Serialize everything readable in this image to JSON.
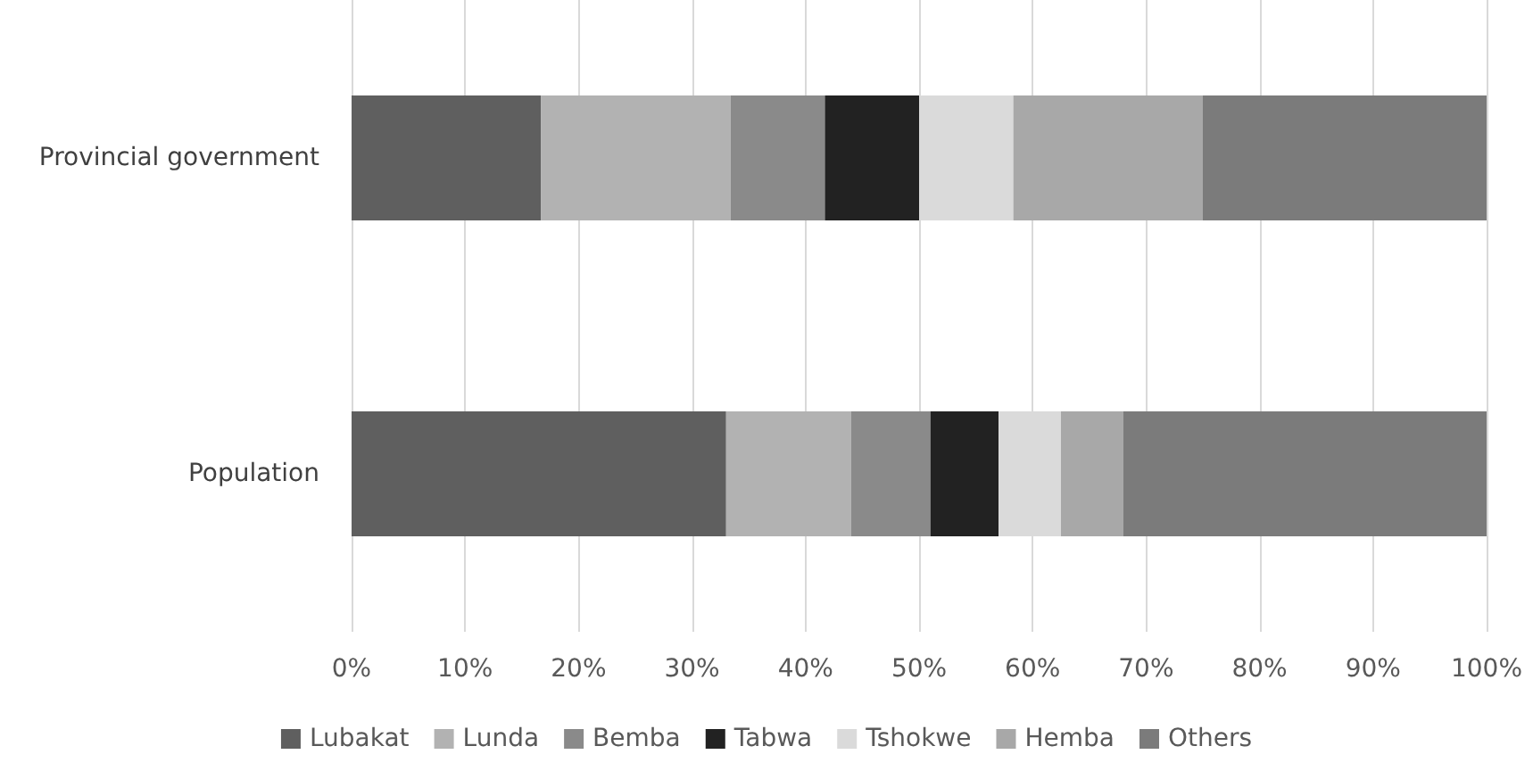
{
  "chart_data": {
    "type": "bar",
    "orientation": "horizontal",
    "stacked": true,
    "categories": [
      "Provincial government",
      "Population"
    ],
    "series": [
      {
        "name": "Lubakat",
        "color": "#5f5f5f",
        "values": [
          16.7,
          33
        ]
      },
      {
        "name": "Lunda",
        "color": "#b2b2b2",
        "values": [
          16.7,
          11
        ]
      },
      {
        "name": "Bemba",
        "color": "#8a8a8a",
        "values": [
          8.3,
          7
        ]
      },
      {
        "name": "Tabwa",
        "color": "#222222",
        "values": [
          8.3,
          6
        ]
      },
      {
        "name": "Tshokwe",
        "color": "#dadada",
        "values": [
          8.3,
          5.5
        ]
      },
      {
        "name": "Hemba",
        "color": "#a8a8a8",
        "values": [
          16.7,
          5.5
        ]
      },
      {
        "name": "Others",
        "color": "#7b7b7b",
        "values": [
          25,
          32
        ]
      }
    ],
    "xlim": [
      0,
      100
    ],
    "xticks": [
      {
        "value": 0,
        "label": "0%"
      },
      {
        "value": 10,
        "label": "10%"
      },
      {
        "value": 20,
        "label": "20%"
      },
      {
        "value": 30,
        "label": "30%"
      },
      {
        "value": 40,
        "label": "40%"
      },
      {
        "value": 50,
        "label": "50%"
      },
      {
        "value": 60,
        "label": "60%"
      },
      {
        "value": 70,
        "label": "70%"
      },
      {
        "value": 80,
        "label": "80%"
      },
      {
        "value": 90,
        "label": "90%"
      },
      {
        "value": 100,
        "label": "100%"
      }
    ],
    "grid": "x",
    "legend": "bottom"
  }
}
